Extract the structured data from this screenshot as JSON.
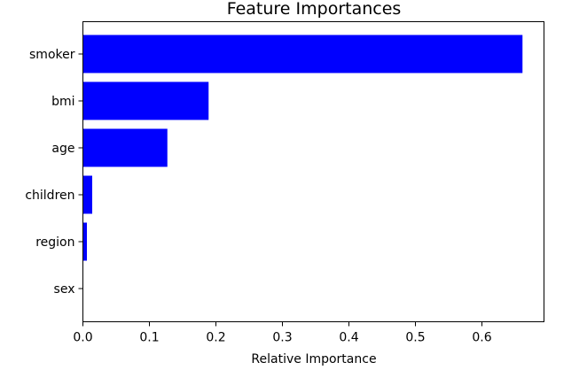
{
  "chart_data": {
    "type": "bar",
    "orientation": "horizontal",
    "title": "Feature Importances",
    "xlabel": "Relative Importance",
    "ylabel": "",
    "categories": [
      "smoker",
      "bmi",
      "age",
      "children",
      "region",
      "sex"
    ],
    "values": [
      0.661,
      0.189,
      0.127,
      0.014,
      0.006,
      0.0005
    ],
    "xlim": [
      0,
      0.7
    ],
    "xticks": [
      "0.0",
      "0.1",
      "0.2",
      "0.3",
      "0.4",
      "0.5",
      "0.6"
    ],
    "grid": false,
    "legend": "none",
    "bar_color": "#0000ff"
  }
}
